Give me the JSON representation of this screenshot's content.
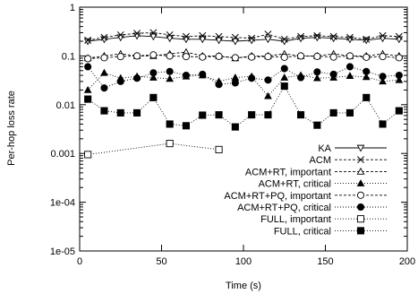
{
  "chart_data": {
    "type": "line",
    "xlabel": "Time (s)",
    "ylabel": "Per-hop loss rate",
    "xlim": [
      0,
      200
    ],
    "ylim": [
      1e-05,
      1
    ],
    "y_scale": "log",
    "x_ticks": [
      0,
      50,
      100,
      150,
      200
    ],
    "x_tick_labels": [
      "0",
      "50",
      "100",
      "150",
      "200"
    ],
    "y_ticks": [
      1e-05,
      0.0001,
      0.001,
      0.01,
      0.1,
      1
    ],
    "y_tick_labels": [
      "1e-05",
      "1e-04",
      "0.001",
      "0.01",
      "0.1",
      "1"
    ],
    "grid": false,
    "legend_position": "bottom-right",
    "series": [
      {
        "name": "KA",
        "marker": "triangle-down-open",
        "line": "solid",
        "x": [
          5,
          15,
          25,
          35,
          45,
          55,
          65,
          75,
          85,
          95,
          105,
          115,
          125,
          135,
          145,
          155,
          165,
          175,
          185,
          195
        ],
        "y": [
          0.2,
          0.22,
          0.24,
          0.26,
          0.25,
          0.23,
          0.22,
          0.22,
          0.21,
          0.2,
          0.21,
          0.22,
          0.2,
          0.23,
          0.24,
          0.23,
          0.22,
          0.21,
          0.23,
          0.22
        ]
      },
      {
        "name": "ACM",
        "marker": "x",
        "line": "dashed",
        "x": [
          5,
          15,
          25,
          35,
          45,
          55,
          65,
          75,
          85,
          95,
          105,
          115,
          125,
          135,
          145,
          155,
          165,
          175,
          185,
          195
        ],
        "y": [
          0.21,
          0.24,
          0.27,
          0.29,
          0.3,
          0.27,
          0.25,
          0.26,
          0.25,
          0.24,
          0.23,
          0.28,
          0.22,
          0.25,
          0.26,
          0.25,
          0.24,
          0.22,
          0.26,
          0.25
        ]
      },
      {
        "name": "ACM+RT, important",
        "marker": "triangle-up-open",
        "line": "dashed",
        "x": [
          5,
          15,
          25,
          35,
          45,
          55,
          65,
          75,
          85,
          95,
          105,
          115,
          125,
          135,
          145,
          155,
          165,
          175,
          185,
          195
        ],
        "y": [
          0.09,
          0.1,
          0.11,
          0.1,
          0.1,
          0.11,
          0.12,
          0.1,
          0.1,
          0.09,
          0.1,
          0.1,
          0.11,
          0.1,
          0.1,
          0.11,
          0.1,
          0.1,
          0.11,
          0.1
        ]
      },
      {
        "name": "ACM+RT, critical",
        "marker": "triangle-up-filled",
        "line": "dotted",
        "x": [
          5,
          15,
          25,
          35,
          45,
          55,
          65,
          75,
          85,
          95,
          105,
          115,
          125,
          135,
          145,
          155,
          165,
          175,
          185,
          195
        ],
        "y": [
          0.02,
          0.045,
          0.035,
          0.038,
          0.036,
          0.034,
          0.038,
          0.04,
          0.03,
          0.036,
          0.038,
          0.015,
          0.036,
          0.04,
          0.035,
          0.036,
          0.039,
          0.037,
          0.03,
          0.032
        ]
      },
      {
        "name": "ACM+RT+PQ, important",
        "marker": "circle-open",
        "line": "dashed",
        "x": [
          5,
          15,
          25,
          35,
          45,
          55,
          65,
          75,
          85,
          95,
          105,
          115,
          125,
          135,
          145,
          155,
          165,
          175,
          185,
          195
        ],
        "y": [
          0.088,
          0.092,
          0.097,
          0.1,
          0.105,
          0.1,
          0.097,
          0.095,
          0.098,
          0.092,
          0.095,
          0.097,
          0.094,
          0.1,
          0.098,
          0.095,
          0.1,
          0.094,
          0.097,
          0.092
        ]
      },
      {
        "name": "ACM+RT+PQ, critical",
        "marker": "circle-filled",
        "line": "dotted",
        "x": [
          5,
          15,
          25,
          35,
          45,
          55,
          65,
          75,
          85,
          95,
          105,
          115,
          125,
          135,
          145,
          155,
          165,
          175,
          185,
          195
        ],
        "y": [
          0.06,
          0.022,
          0.03,
          0.035,
          0.045,
          0.048,
          0.04,
          0.042,
          0.026,
          0.028,
          0.035,
          0.032,
          0.055,
          0.036,
          0.047,
          0.042,
          0.06,
          0.048,
          0.038,
          0.04
        ]
      },
      {
        "name": "FULL, important",
        "marker": "square-open",
        "line": "dotted",
        "x": [
          5,
          55,
          85
        ],
        "y": [
          0.00095,
          0.0016,
          0.0012
        ]
      },
      {
        "name": "FULL, critical",
        "marker": "square-filled",
        "line": "dotted",
        "x": [
          5,
          15,
          25,
          35,
          45,
          55,
          65,
          75,
          85,
          95,
          105,
          115,
          125,
          135,
          145,
          155,
          165,
          175,
          185,
          195
        ],
        "y": [
          0.013,
          0.0075,
          0.0068,
          0.0068,
          0.014,
          0.004,
          0.0037,
          0.0061,
          0.0062,
          0.0035,
          0.0062,
          0.0062,
          0.024,
          0.0062,
          0.0038,
          0.0068,
          0.0068,
          0.014,
          0.004,
          0.0075
        ]
      }
    ]
  }
}
